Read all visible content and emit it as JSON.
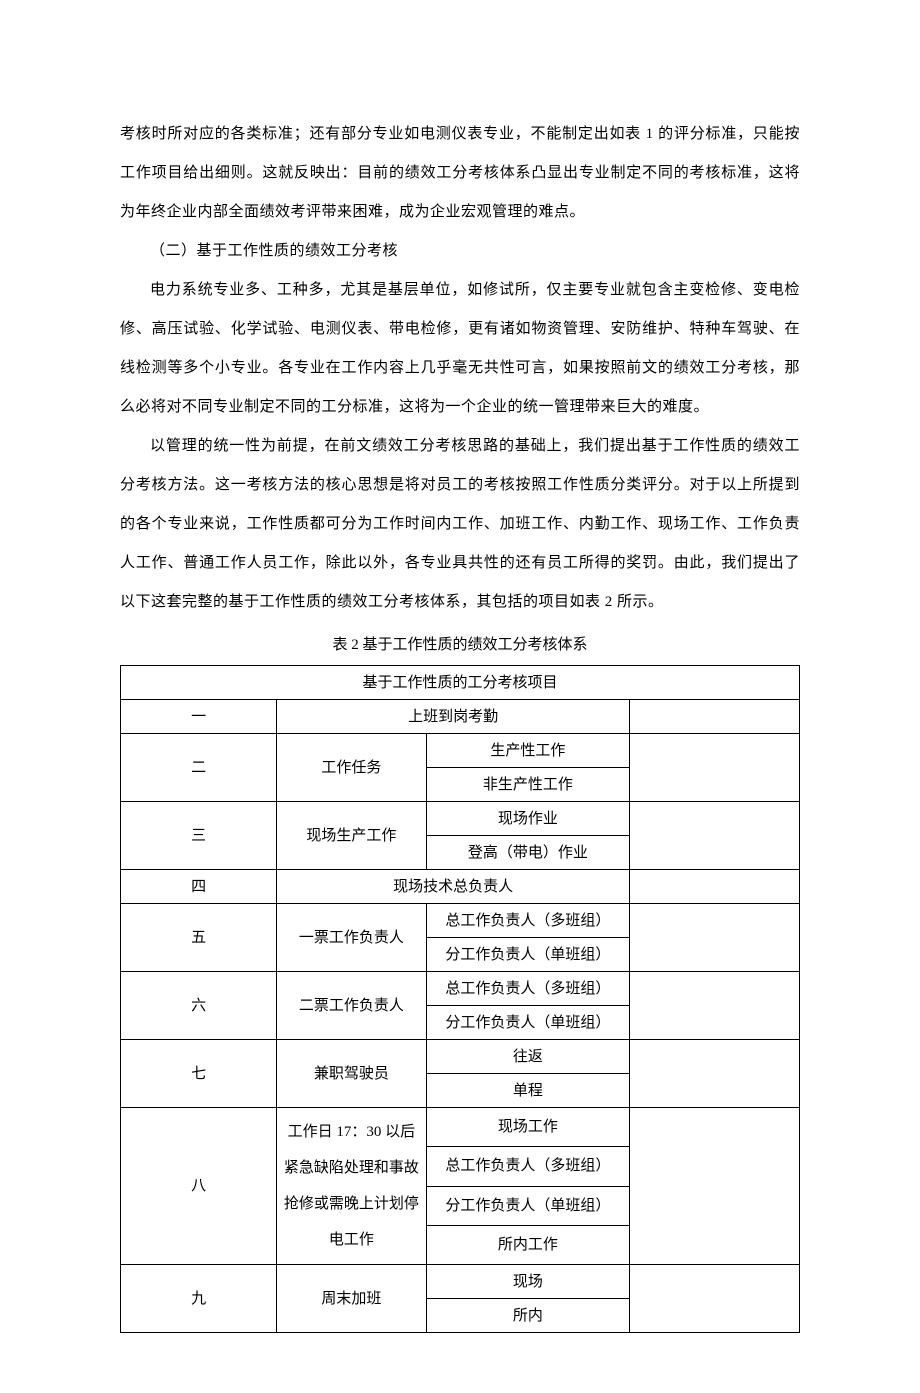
{
  "paragraphs": {
    "p1": "考核时所对应的各类标准；还有部分专业如电测仪表专业，不能制定出如表 1 的评分标准，只能按工作项目给出细则。这就反映出：目前的绩效工分考核体系凸显出专业制定不同的考核标准，这将为年终企业内部全面绩效考评带来困难，成为企业宏观管理的难点。",
    "p2_heading": "（二）基于工作性质的绩效工分考核",
    "p3": "电力系统专业多、工种多，尤其是基层单位，如修试所，仅主要专业就包含主变检修、变电检修、高压试验、化学试验、电测仪表、带电检修，更有诸如物资管理、安防维护、特种车驾驶、在线检测等多个小专业。各专业在工作内容上几乎毫无共性可言，如果按照前文的绩效工分考核，那么必将对不同专业制定不同的工分标准，这将为一个企业的统一管理带来巨大的难度。",
    "p4": "以管理的统一性为前提，在前文绩效工分考核思路的基础上，我们提出基于工作性质的绩效工分考核方法。这一考核方法的核心思想是将对员工的考核按照工作性质分类评分。对于以上所提到的各个专业来说，工作性质都可分为工作时间内工作、加班工作、内勤工作、现场工作、工作负责人工作、普通工作人员工作，除此以外，各专业具共性的还有员工所得的奖罚。由此，我们提出了以下这套完整的基于工作性质的绩效工分考核体系，其包括的项目如表 2 所示。"
  },
  "table": {
    "caption": "表 2  基于工作性质的绩效工分考核体系",
    "header": "基于工作性质的工分考核项目",
    "rows": {
      "r1_num": "一",
      "r1_b": "上班到岗考勤",
      "r2_num": "二",
      "r2_b": "工作任务",
      "r2_c1": "生产性工作",
      "r2_c2": "非生产性工作",
      "r3_num": "三",
      "r3_b": "现场生产工作",
      "r3_c1": "现场作业",
      "r3_c2": "登高（带电）作业",
      "r4_num": "四",
      "r4_b": "现场技术总负责人",
      "r5_num": "五",
      "r5_b": "一票工作负责人",
      "r5_c1": "总工作负责人（多班组）",
      "r5_c2": "分工作负责人（单班组）",
      "r6_num": "六",
      "r6_b": "二票工作负责人",
      "r6_c1": "总工作负责人（多班组）",
      "r6_c2": "分工作负责人（单班组）",
      "r7_num": "七",
      "r7_b": "兼职驾驶员",
      "r7_c1": "往返",
      "r7_c2": "单程",
      "r8_num": "八",
      "r8_b": "工作日 17：30 以后紧急缺陷处理和事故抢修或需晚上计划停电工作",
      "r8_c1": "现场工作",
      "r8_c2": "总工作负责人（多班组）",
      "r8_c3": "分工作负责人（单班组）",
      "r8_c4": "所内工作",
      "r9_num": "九",
      "r9_b": "周末加班",
      "r9_c1": "现场",
      "r9_c2": "所内"
    }
  }
}
